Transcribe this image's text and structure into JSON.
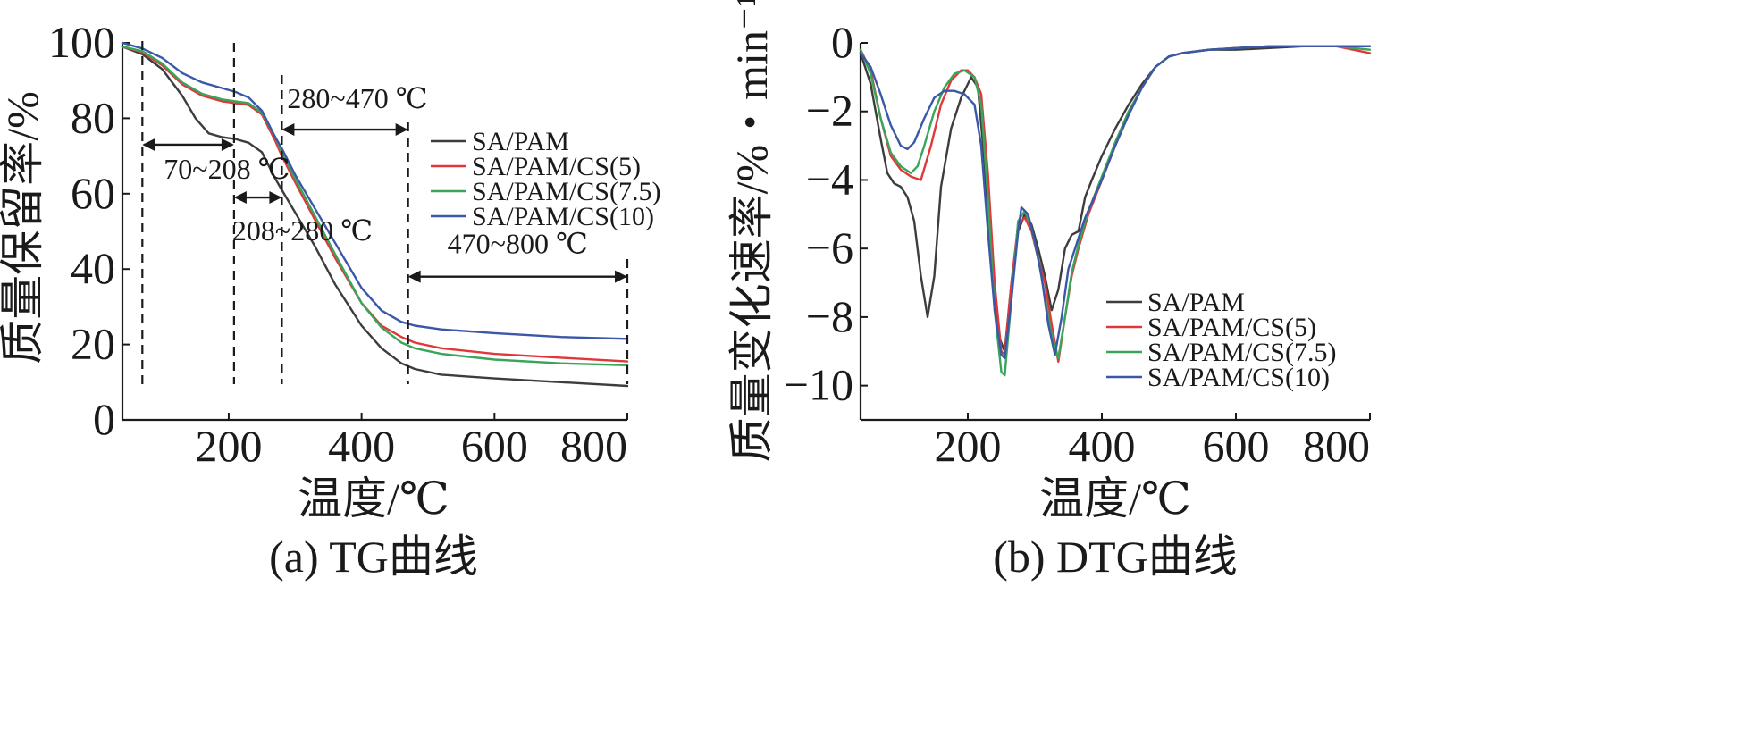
{
  "colors": {
    "SA/PAM": "#3d3d3d",
    "SA/PAM/CS(5)": "#e0383a",
    "SA/PAM/CS(7.5)": "#3aa55a",
    "SA/PAM/CS(10)": "#3b57a8"
  },
  "chart_data": [
    {
      "type": "line",
      "caption": "(a) TG曲线",
      "xlabel": "温度/℃",
      "ylabel": "质量保留率/%",
      "xlim": [
        40,
        800
      ],
      "ylim": [
        0,
        100
      ],
      "xticks": [
        200,
        400,
        600,
        800
      ],
      "yticks": [
        0,
        20,
        40,
        60,
        80,
        100
      ],
      "legend_position": "center-right",
      "grid": false,
      "series": [
        {
          "name": "SA/PAM",
          "x": [
            40,
            70,
            100,
            130,
            150,
            170,
            190,
            210,
            230,
            250,
            270,
            280,
            300,
            330,
            360,
            400,
            430,
            460,
            480,
            520,
            600,
            700,
            800
          ],
          "y": [
            99,
            97,
            93,
            86,
            80,
            76,
            75,
            74.5,
            73.5,
            71,
            64,
            61,
            55,
            46,
            36,
            25,
            19,
            15,
            13.5,
            12,
            11,
            10,
            9
          ]
        },
        {
          "name": "SA/PAM/CS(5)",
          "x": [
            40,
            70,
            100,
            130,
            160,
            190,
            210,
            230,
            250,
            270,
            280,
            300,
            330,
            360,
            400,
            430,
            460,
            480,
            520,
            600,
            700,
            800
          ],
          "y": [
            99,
            97.5,
            94,
            89,
            86,
            84.5,
            84,
            83.5,
            81,
            74,
            70,
            63,
            53,
            43,
            31,
            25,
            22,
            20.5,
            19,
            17.5,
            16.5,
            15.5
          ]
        },
        {
          "name": "SA/PAM/CS(7.5)",
          "x": [
            40,
            70,
            100,
            130,
            160,
            190,
            210,
            230,
            250,
            270,
            280,
            300,
            330,
            360,
            400,
            430,
            460,
            480,
            520,
            600,
            700,
            800
          ],
          "y": [
            99,
            97.8,
            94.5,
            89.5,
            86.5,
            85,
            84.5,
            84,
            81.5,
            75,
            71,
            64,
            54,
            44,
            31,
            24.5,
            20.5,
            19,
            17.5,
            16,
            15,
            14.5
          ]
        },
        {
          "name": "SA/PAM/CS(10)",
          "x": [
            40,
            70,
            100,
            130,
            160,
            190,
            210,
            230,
            250,
            270,
            280,
            300,
            330,
            360,
            400,
            430,
            460,
            480,
            520,
            600,
            700,
            800
          ],
          "y": [
            100,
            98.5,
            96,
            92,
            89.5,
            88,
            87,
            85.5,
            82,
            75,
            72,
            65,
            56,
            47,
            35,
            29,
            26,
            25,
            24,
            23,
            22,
            21.5
          ]
        }
      ],
      "annotations": [
        {
          "label": "70~208 ℃",
          "x_start": 70,
          "x_end": 208,
          "y": 73
        },
        {
          "label": "208~280 ℃",
          "x_start": 208,
          "x_end": 280,
          "y": 59
        },
        {
          "label": "280~470 ℃",
          "x_start": 280,
          "x_end": 470,
          "y": 77
        },
        {
          "label": "470~800 ℃",
          "x_start": 470,
          "x_end": 800,
          "y": 38
        }
      ],
      "dashed_lines_x": [
        70,
        208,
        280,
        470,
        800
      ]
    },
    {
      "type": "line",
      "caption": "(b) DTG曲线",
      "xlabel": "温度/℃",
      "ylabel": "质量变化速率/%・min⁻¹",
      "xlim": [
        40,
        800
      ],
      "ylim": [
        -11,
        0
      ],
      "xticks": [
        200,
        400,
        600,
        800
      ],
      "yticks": [
        0,
        -2,
        -4,
        -6,
        -8,
        -10
      ],
      "legend_position": "lower-right",
      "grid": false,
      "series": [
        {
          "name": "SA/PAM",
          "x": [
            40,
            55,
            70,
            80,
            90,
            100,
            110,
            120,
            130,
            140,
            150,
            160,
            175,
            190,
            205,
            215,
            225,
            235,
            245,
            255,
            265,
            275,
            285,
            295,
            305,
            315,
            325,
            335,
            345,
            355,
            365,
            375,
            385,
            400,
            420,
            440,
            460,
            480,
            500,
            520,
            560,
            600,
            650,
            700,
            750,
            800
          ],
          "y": [
            -0.3,
            -1.2,
            -2.8,
            -3.8,
            -4.1,
            -4.2,
            -4.5,
            -5.2,
            -6.8,
            -8.0,
            -6.8,
            -4.2,
            -2.5,
            -1.6,
            -1.0,
            -1.3,
            -3.5,
            -6.5,
            -8.5,
            -9.0,
            -7.0,
            -5.5,
            -5.0,
            -5.3,
            -6.0,
            -6.8,
            -7.8,
            -7.2,
            -6.0,
            -5.6,
            -5.5,
            -4.5,
            -4.0,
            -3.3,
            -2.5,
            -1.8,
            -1.2,
            -0.7,
            -0.4,
            -0.3,
            -0.2,
            -0.2,
            -0.15,
            -0.1,
            -0.1,
            -0.1
          ]
        },
        {
          "name": "SA/PAM/CS(5)",
          "x": [
            40,
            55,
            70,
            85,
            100,
            115,
            130,
            145,
            160,
            175,
            190,
            200,
            210,
            220,
            230,
            240,
            250,
            255,
            265,
            275,
            285,
            295,
            305,
            315,
            325,
            335,
            345,
            355,
            365,
            380,
            400,
            420,
            440,
            460,
            480,
            500,
            520,
            560,
            600,
            650,
            700,
            750,
            800
          ],
          "y": [
            -0.2,
            -0.8,
            -2.2,
            -3.3,
            -3.7,
            -3.9,
            -4.0,
            -3.0,
            -1.8,
            -1.1,
            -0.8,
            -0.8,
            -1.0,
            -1.5,
            -3.8,
            -7.0,
            -9.0,
            -9.1,
            -7.0,
            -5.3,
            -5.1,
            -5.5,
            -6.3,
            -7.0,
            -8.2,
            -9.3,
            -8.0,
            -6.8,
            -6.0,
            -5.0,
            -4.0,
            -3.0,
            -2.0,
            -1.3,
            -0.7,
            -0.4,
            -0.3,
            -0.2,
            -0.15,
            -0.1,
            -0.1,
            -0.1,
            -0.3
          ]
        },
        {
          "name": "SA/PAM/CS(7.5)",
          "x": [
            40,
            55,
            70,
            85,
            100,
            115,
            125,
            135,
            150,
            165,
            180,
            195,
            210,
            220,
            230,
            240,
            250,
            255,
            265,
            275,
            285,
            295,
            305,
            315,
            325,
            335,
            345,
            355,
            365,
            380,
            400,
            420,
            440,
            460,
            480,
            500,
            520,
            560,
            600,
            650,
            700,
            750,
            800
          ],
          "y": [
            -0.2,
            -0.9,
            -2.2,
            -3.2,
            -3.6,
            -3.8,
            -3.6,
            -3.0,
            -2.0,
            -1.3,
            -0.9,
            -0.8,
            -1.0,
            -1.8,
            -4.5,
            -7.8,
            -9.6,
            -9.7,
            -7.5,
            -5.2,
            -4.9,
            -5.4,
            -6.3,
            -7.4,
            -8.5,
            -9.2,
            -8.0,
            -6.7,
            -5.9,
            -4.9,
            -3.9,
            -2.9,
            -2.0,
            -1.3,
            -0.7,
            -0.4,
            -0.3,
            -0.2,
            -0.15,
            -0.1,
            -0.1,
            -0.1,
            -0.2
          ]
        },
        {
          "name": "SA/PAM/CS(10)",
          "x": [
            40,
            55,
            70,
            85,
            100,
            110,
            120,
            135,
            150,
            165,
            180,
            195,
            210,
            220,
            230,
            240,
            250,
            255,
            265,
            275,
            280,
            290,
            300,
            310,
            320,
            330,
            340,
            350,
            360,
            375,
            400,
            420,
            440,
            460,
            480,
            500,
            520,
            560,
            600,
            650,
            700,
            750,
            800
          ],
          "y": [
            -0.3,
            -0.7,
            -1.5,
            -2.4,
            -3.0,
            -3.1,
            -2.9,
            -2.2,
            -1.6,
            -1.4,
            -1.4,
            -1.5,
            -1.8,
            -3.0,
            -5.5,
            -7.8,
            -9.1,
            -9.2,
            -7.5,
            -5.5,
            -4.8,
            -5.0,
            -5.8,
            -6.8,
            -8.2,
            -9.1,
            -8.0,
            -6.6,
            -6.0,
            -5.1,
            -4.0,
            -3.0,
            -2.1,
            -1.3,
            -0.7,
            -0.4,
            -0.3,
            -0.2,
            -0.15,
            -0.1,
            -0.1,
            -0.1,
            -0.1
          ]
        }
      ]
    }
  ]
}
